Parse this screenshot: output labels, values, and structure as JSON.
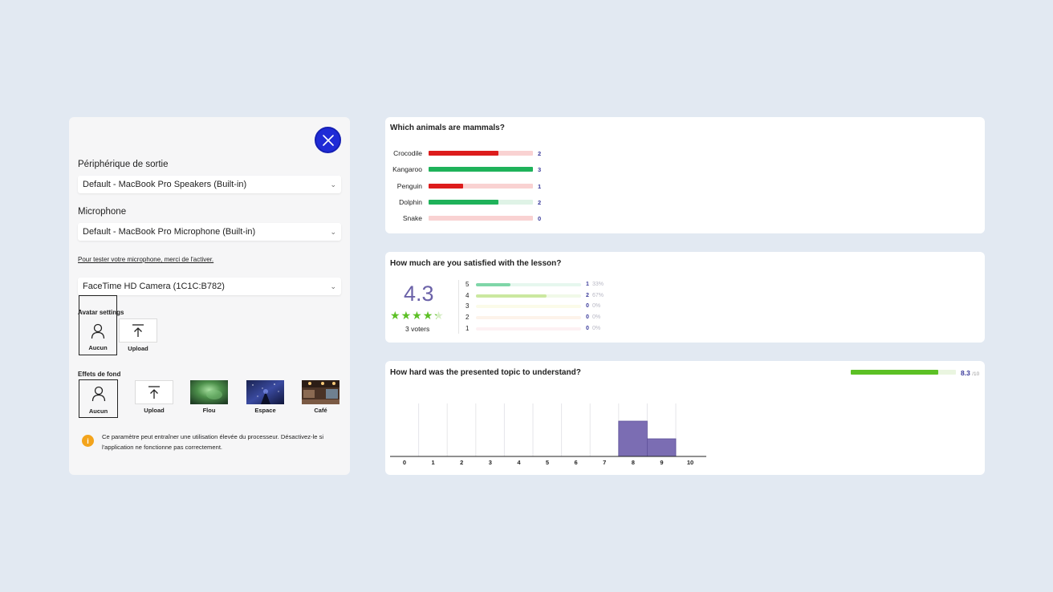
{
  "settings": {
    "output_label": "Périphérique de sortie",
    "output_value": "Default - MacBook Pro Speakers (Built-in)",
    "mic_label": "Microphone",
    "mic_value": "Default - MacBook Pro Microphone (Built-in)",
    "test_link": "Pour tester votre microphone, merci de l'activer.",
    "camera_value": "FaceTime HD Camera (1C1C:B782)",
    "avatar_title": "Avatar settings",
    "avatar_options": [
      "Aucun",
      "Upload"
    ],
    "bg_title": "Effets de fond",
    "bg_options": [
      "Aucun",
      "Upload",
      "Flou",
      "Espace",
      "Café"
    ],
    "warning_text": "Ce paramètre peut entraîner une utilisation élevée du processeur. Désactivez-le si l'application ne fonctionne pas correctement."
  },
  "mammals": {
    "title": "Which animals are mammals?",
    "max": 3,
    "items": [
      {
        "name": "Crocodile",
        "count": "2",
        "value": 2,
        "correct": false
      },
      {
        "name": "Kangaroo",
        "count": "3",
        "value": 3,
        "correct": true
      },
      {
        "name": "Penguin",
        "count": "1",
        "value": 1,
        "correct": false
      },
      {
        "name": "Dolphin",
        "count": "2",
        "value": 2,
        "correct": true
      },
      {
        "name": "Snake",
        "count": "0",
        "value": 0,
        "correct": false
      }
    ]
  },
  "rating": {
    "title": "How much are you satisfied with the lesson?",
    "average": "4.3",
    "stars_value": 4.3,
    "voters": "3 voters",
    "rows": [
      {
        "label": "5",
        "count": "1",
        "pct": "33%",
        "fraction": 0.33,
        "color": "#7fd6a8",
        "track": "#e6f7ee"
      },
      {
        "label": "4",
        "count": "2",
        "pct": "67%",
        "fraction": 0.67,
        "color": "#cbe8a0",
        "track": "#f1f9e8"
      },
      {
        "label": "3",
        "count": "0",
        "pct": "0%",
        "fraction": 0,
        "color": "#f5f4c8",
        "track": "#fbfbe9"
      },
      {
        "label": "2",
        "count": "0",
        "pct": "0%",
        "fraction": 0,
        "color": "#fdeede",
        "track": "#fdf3ea"
      },
      {
        "label": "1",
        "count": "0",
        "pct": "0%",
        "fraction": 0,
        "color": "#fde8ec",
        "track": "#fdf1f3"
      }
    ]
  },
  "difficulty": {
    "title": "How hard was the presented topic to understand?",
    "score": "8.3",
    "max_label": "/10",
    "score_fraction": 0.83
  },
  "colors": {
    "correct_fill": "#1fb25a",
    "correct_track": "#dff3e6",
    "wrong_fill": "#dd1c1c",
    "wrong_track": "#f9d2d2",
    "accent": "#6b62a8",
    "star_fill": "#5cc025",
    "star_empty": "#d7eec6",
    "close_button": "#1f2bd6"
  },
  "chart_data": {
    "type": "bar",
    "title": "How hard was the presented topic to understand?",
    "categories": [
      "0",
      "1",
      "2",
      "3",
      "4",
      "5",
      "6",
      "7",
      "8",
      "9",
      "10"
    ],
    "values": [
      0,
      0,
      0,
      0,
      0,
      0,
      0,
      0,
      2,
      1,
      0
    ],
    "xlabel": "",
    "ylabel": "",
    "ylim": [
      0,
      2
    ],
    "grid": true,
    "bar_color": "#7b6db3"
  }
}
